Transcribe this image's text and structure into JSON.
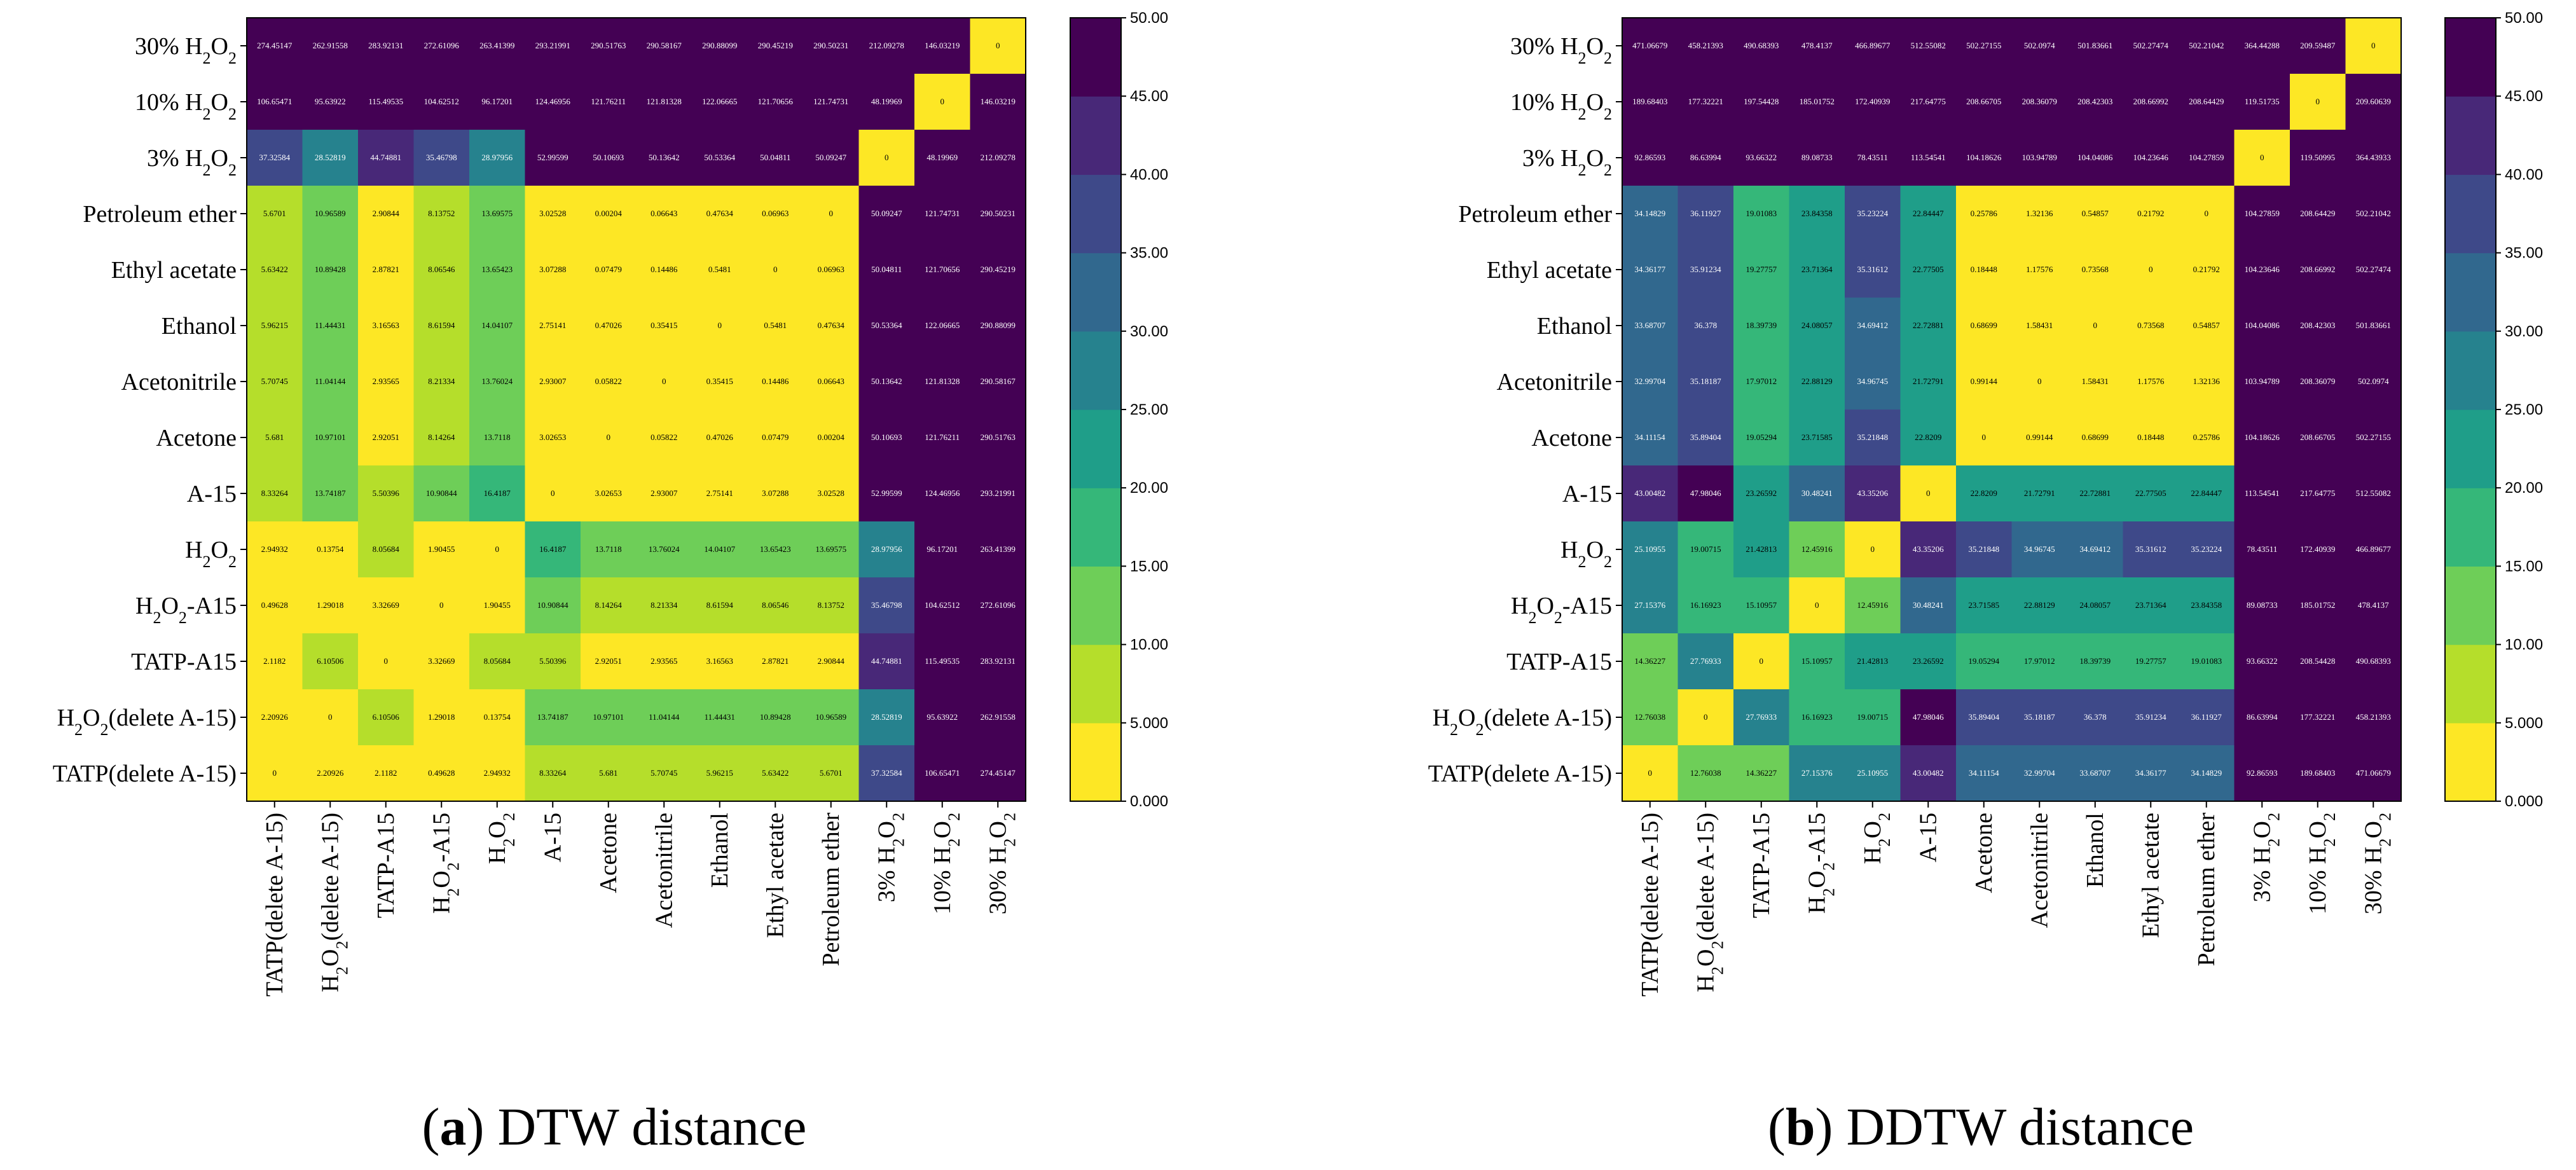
{
  "chart_data": [
    {
      "type": "heatmap",
      "panel": "a",
      "caption_letter": "a",
      "caption_text": "DTW distance",
      "rows": [
        "30% H2O2",
        "10% H2O2",
        "3% H2O2",
        "Petroleum ether",
        "Ethyl acetate",
        "Ethanol",
        "Acetonitrile",
        "Acetone",
        "A-15",
        "H2O2",
        "H2O2-A15",
        "TATP-A15",
        "H2O2(delete A-15)",
        "TATP(delete A-15)"
      ],
      "columns": [
        "TATP(delete A-15)",
        "H2O2(delete A-15)",
        "TATP-A15",
        "H2O2-A15",
        "H2O2",
        "A-15",
        "Acetone",
        "Acetonitrile",
        "Ethanol",
        "Ethyl acetate",
        "Petroleum ether",
        "3% H2O2",
        "10% H2O2",
        "30% H2O2"
      ],
      "values": [
        [
          "274.45147",
          "262.91558",
          "283.92131",
          "272.61096",
          "263.41399",
          "293.21991",
          "290.51763",
          "290.58167",
          "290.88099",
          "290.45219",
          "290.50231",
          "212.09278",
          "146.03219",
          "0"
        ],
        [
          "106.65471",
          "95.63922",
          "115.49535",
          "104.62512",
          "96.17201",
          "124.46956",
          "121.76211",
          "121.81328",
          "122.06665",
          "121.70656",
          "121.74731",
          "48.19969",
          "0",
          "146.03219"
        ],
        [
          "37.32584",
          "28.52819",
          "44.74881",
          "35.46798",
          "28.97956",
          "52.99599",
          "50.10693",
          "50.13642",
          "50.53364",
          "50.04811",
          "50.09247",
          "0",
          "48.19969",
          "212.09278"
        ],
        [
          "5.6701",
          "10.96589",
          "2.90844",
          "8.13752",
          "13.69575",
          "3.02528",
          "0.00204",
          "0.06643",
          "0.47634",
          "0.06963",
          "0",
          "50.09247",
          "121.74731",
          "290.50231"
        ],
        [
          "5.63422",
          "10.89428",
          "2.87821",
          "8.06546",
          "13.65423",
          "3.07288",
          "0.07479",
          "0.14486",
          "0.5481",
          "0",
          "0.06963",
          "50.04811",
          "121.70656",
          "290.45219"
        ],
        [
          "5.96215",
          "11.44431",
          "3.16563",
          "8.61594",
          "14.04107",
          "2.75141",
          "0.47026",
          "0.35415",
          "0",
          "0.5481",
          "0.47634",
          "50.53364",
          "122.06665",
          "290.88099"
        ],
        [
          "5.70745",
          "11.04144",
          "2.93565",
          "8.21334",
          "13.76024",
          "2.93007",
          "0.05822",
          "0",
          "0.35415",
          "0.14486",
          "0.06643",
          "50.13642",
          "121.81328",
          "290.58167"
        ],
        [
          "5.681",
          "10.97101",
          "2.92051",
          "8.14264",
          "13.7118",
          "3.02653",
          "0",
          "0.05822",
          "0.47026",
          "0.07479",
          "0.00204",
          "50.10693",
          "121.76211",
          "290.51763"
        ],
        [
          "8.33264",
          "13.74187",
          "5.50396",
          "10.90844",
          "16.4187",
          "0",
          "3.02653",
          "2.93007",
          "2.75141",
          "3.07288",
          "3.02528",
          "52.99599",
          "124.46956",
          "293.21991"
        ],
        [
          "2.94932",
          "0.13754",
          "8.05684",
          "1.90455",
          "0",
          "16.4187",
          "13.7118",
          "13.76024",
          "14.04107",
          "13.65423",
          "13.69575",
          "28.97956",
          "96.17201",
          "263.41399"
        ],
        [
          "0.49628",
          "1.29018",
          "3.32669",
          "0",
          "1.90455",
          "10.90844",
          "8.14264",
          "8.21334",
          "8.61594",
          "8.06546",
          "8.13752",
          "35.46798",
          "104.62512",
          "272.61096"
        ],
        [
          "2.1182",
          "6.10506",
          "0",
          "3.32669",
          "8.05684",
          "5.50396",
          "2.92051",
          "2.93565",
          "3.16563",
          "2.87821",
          "2.90844",
          "44.74881",
          "115.49535",
          "283.92131"
        ],
        [
          "2.20926",
          "0",
          "6.10506",
          "1.29018",
          "0.13754",
          "13.74187",
          "10.97101",
          "11.04144",
          "11.44431",
          "10.89428",
          "10.96589",
          "28.52819",
          "95.63922",
          "262.91558"
        ],
        [
          "0",
          "2.20926",
          "2.1182",
          "0.49628",
          "2.94932",
          "8.33264",
          "5.681",
          "5.70745",
          "5.96215",
          "5.63422",
          "5.6701",
          "37.32584",
          "106.65471",
          "274.45147"
        ]
      ],
      "colorbar": {
        "min": 0,
        "max": 50,
        "ticks": [
          "0.000",
          "5.000",
          "10.00",
          "15.00",
          "20.00",
          "25.00",
          "30.00",
          "35.00",
          "40.00",
          "45.00",
          "50.00"
        ]
      }
    },
    {
      "type": "heatmap",
      "panel": "b",
      "caption_letter": "b",
      "caption_text": "DDTW distance",
      "rows": [
        "30% H2O2",
        "10% H2O2",
        "3% H2O2",
        "Petroleum ether",
        "Ethyl acetate",
        "Ethanol",
        "Acetonitrile",
        "Acetone",
        "A-15",
        "H2O2",
        "H2O2-A15",
        "TATP-A15",
        "H2O2(delete A-15)",
        "TATP(delete A-15)"
      ],
      "columns": [
        "TATP(delete A-15)",
        "H2O2(delete A-15)",
        "TATP-A15",
        "H2O2-A15",
        "H2O2",
        "A-15",
        "Acetone",
        "Acetonitrile",
        "Ethanol",
        "Ethyl acetate",
        "Petroleum ether",
        "3% H2O2",
        "10% H2O2",
        "30% H2O2"
      ],
      "values": [
        [
          "471.06679",
          "458.21393",
          "490.68393",
          "478.4137",
          "466.89677",
          "512.55082",
          "502.27155",
          "502.0974",
          "501.83661",
          "502.27474",
          "502.21042",
          "364.44288",
          "209.59487",
          "0"
        ],
        [
          "189.68403",
          "177.32221",
          "197.54428",
          "185.01752",
          "172.40939",
          "217.64775",
          "208.66705",
          "208.36079",
          "208.42303",
          "208.66992",
          "208.64429",
          "119.51735",
          "0",
          "209.60639"
        ],
        [
          "92.86593",
          "86.63994",
          "93.66322",
          "89.08733",
          "78.43511",
          "113.54541",
          "104.18626",
          "103.94789",
          "104.04086",
          "104.23646",
          "104.27859",
          "0",
          "119.50995",
          "364.43933"
        ],
        [
          "34.14829",
          "36.11927",
          "19.01083",
          "23.84358",
          "35.23224",
          "22.84447",
          "0.25786",
          "1.32136",
          "0.54857",
          "0.21792",
          "0",
          "104.27859",
          "208.64429",
          "502.21042"
        ],
        [
          "34.36177",
          "35.91234",
          "19.27757",
          "23.71364",
          "35.31612",
          "22.77505",
          "0.18448",
          "1.17576",
          "0.73568",
          "0",
          "0.21792",
          "104.23646",
          "208.66992",
          "502.27474"
        ],
        [
          "33.68707",
          "36.378",
          "18.39739",
          "24.08057",
          "34.69412",
          "22.72881",
          "0.68699",
          "1.58431",
          "0",
          "0.73568",
          "0.54857",
          "104.04086",
          "208.42303",
          "501.83661"
        ],
        [
          "32.99704",
          "35.18187",
          "17.97012",
          "22.88129",
          "34.96745",
          "21.72791",
          "0.99144",
          "0",
          "1.58431",
          "1.17576",
          "1.32136",
          "103.94789",
          "208.36079",
          "502.0974"
        ],
        [
          "34.11154",
          "35.89404",
          "19.05294",
          "23.71585",
          "35.21848",
          "22.8209",
          "0",
          "0.99144",
          "0.68699",
          "0.18448",
          "0.25786",
          "104.18626",
          "208.66705",
          "502.27155"
        ],
        [
          "43.00482",
          "47.98046",
          "23.26592",
          "30.48241",
          "43.35206",
          "0",
          "22.8209",
          "21.72791",
          "22.72881",
          "22.77505",
          "22.84447",
          "113.54541",
          "217.64775",
          "512.55082"
        ],
        [
          "25.10955",
          "19.00715",
          "21.42813",
          "12.45916",
          "0",
          "43.35206",
          "35.21848",
          "34.96745",
          "34.69412",
          "35.31612",
          "35.23224",
          "78.43511",
          "172.40939",
          "466.89677"
        ],
        [
          "27.15376",
          "16.16923",
          "15.10957",
          "0",
          "12.45916",
          "30.48241",
          "23.71585",
          "22.88129",
          "24.08057",
          "23.71364",
          "23.84358",
          "89.08733",
          "185.01752",
          "478.4137"
        ],
        [
          "14.36227",
          "27.76933",
          "0",
          "15.10957",
          "21.42813",
          "23.26592",
          "19.05294",
          "17.97012",
          "18.39739",
          "19.27757",
          "19.01083",
          "93.66322",
          "208.54428",
          "490.68393"
        ],
        [
          "12.76038",
          "0",
          "27.76933",
          "16.16923",
          "19.00715",
          "47.98046",
          "35.89404",
          "35.18187",
          "36.378",
          "35.91234",
          "36.11927",
          "86.63994",
          "177.32221",
          "458.21393"
        ],
        [
          "0",
          "12.76038",
          "14.36227",
          "27.15376",
          "25.10955",
          "43.00482",
          "34.11154",
          "32.99704",
          "33.68707",
          "34.36177",
          "34.14829",
          "92.86593",
          "189.68403",
          "471.06679"
        ]
      ],
      "colorbar": {
        "min": 0,
        "max": 50,
        "ticks": [
          "0.000",
          "5.000",
          "10.00",
          "15.00",
          "20.00",
          "25.00",
          "30.00",
          "35.00",
          "40.00",
          "45.00",
          "50.00"
        ]
      }
    }
  ],
  "palette": [
    "#FDE725",
    "#B5DE2B",
    "#6ECE58",
    "#35B779",
    "#1F9E89",
    "#26828E",
    "#31688E",
    "#3E4989",
    "#482878",
    "#440154"
  ]
}
